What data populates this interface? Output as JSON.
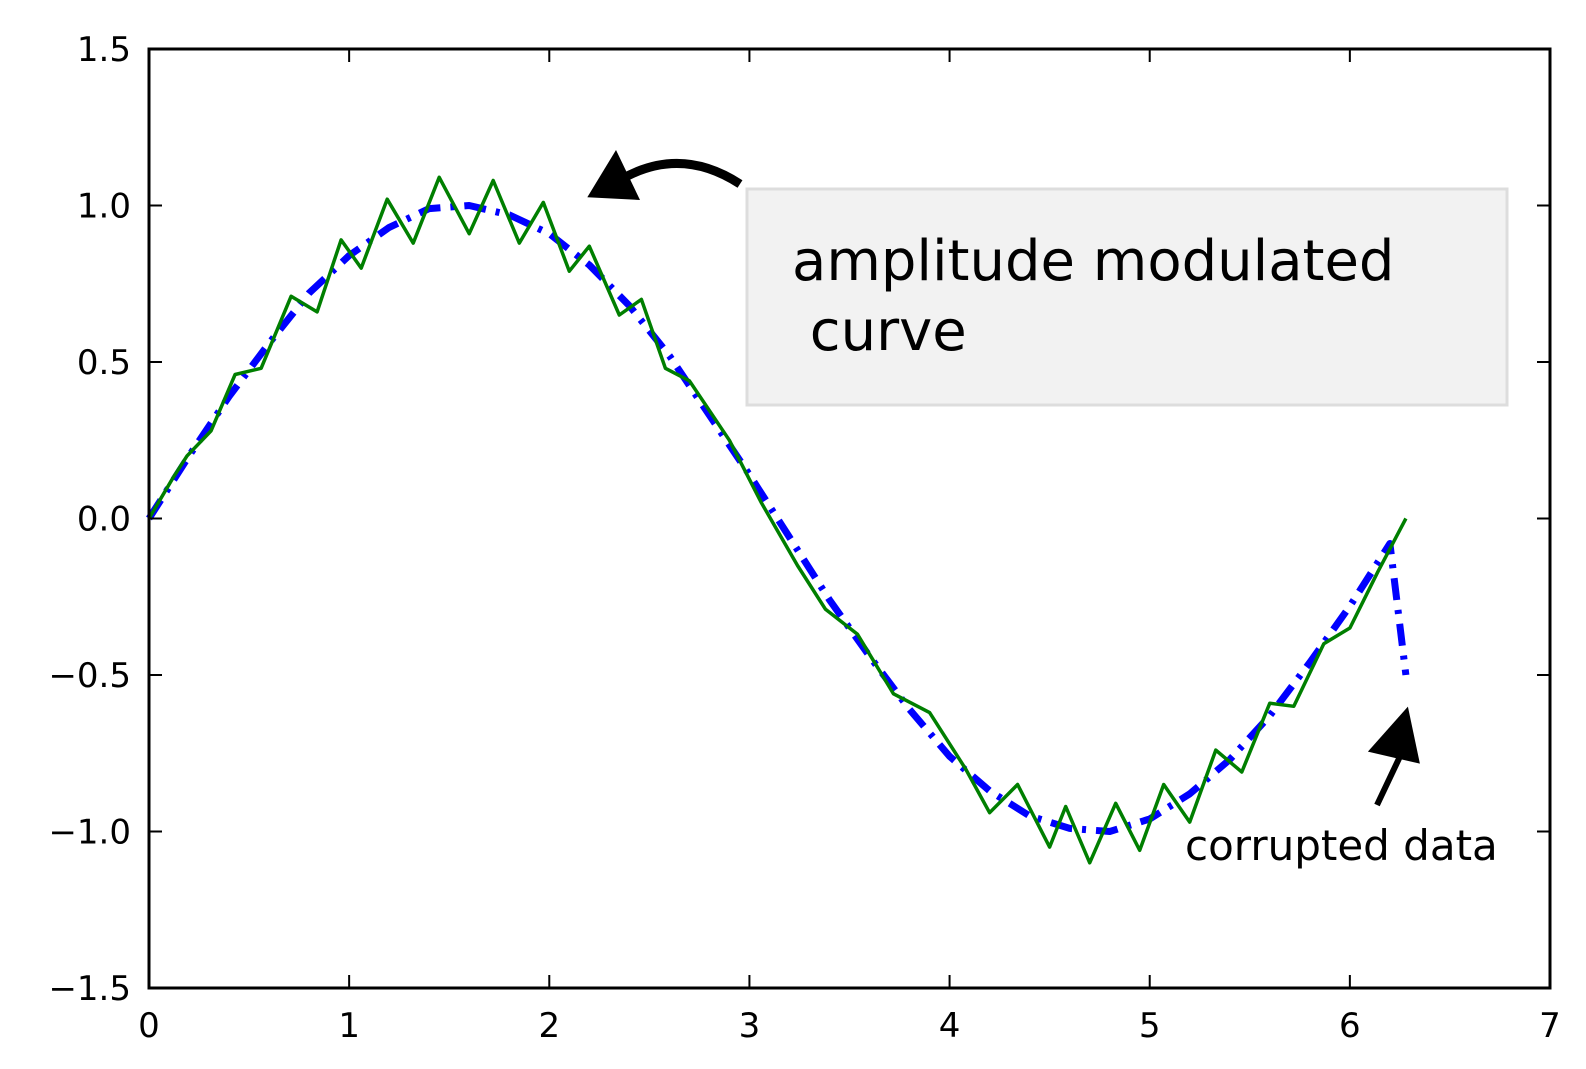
{
  "chart_data": {
    "type": "line",
    "title": "",
    "xlabel": "",
    "ylabel": "",
    "xlim": [
      0,
      7
    ],
    "ylim": [
      -1.5,
      1.5
    ],
    "xticks": [
      0,
      1,
      2,
      3,
      4,
      5,
      6,
      7
    ],
    "xtick_labels": [
      "0",
      "1",
      "2",
      "3",
      "4",
      "5",
      "6",
      "7"
    ],
    "yticks": [
      1.5,
      1.0,
      0.5,
      0.0,
      -0.5,
      -1.0,
      -1.5
    ],
    "ytick_labels": [
      "1.5",
      "1.0",
      "0.5",
      "0.0",
      "−0.5",
      "−1.0",
      "−1.5"
    ],
    "grid": false,
    "series": [
      {
        "name": "",
        "style": "dash-dot",
        "color": "#0000ff",
        "x": [
          0.0,
          0.2,
          0.4,
          0.6,
          0.8,
          1.0,
          1.2,
          1.4,
          1.6,
          1.8,
          2.0,
          2.2,
          2.4,
          2.6,
          2.8,
          3.0,
          3.2,
          3.4,
          3.6,
          3.8,
          4.0,
          4.2,
          4.4,
          4.6,
          4.8,
          5.0,
          5.2,
          5.4,
          5.6,
          5.8,
          6.0,
          6.2,
          6.28
        ],
        "y": [
          0.0,
          0.2,
          0.39,
          0.56,
          0.72,
          0.84,
          0.93,
          0.99,
          1.0,
          0.97,
          0.91,
          0.81,
          0.68,
          0.52,
          0.33,
          0.14,
          -0.06,
          -0.26,
          -0.44,
          -0.61,
          -0.76,
          -0.87,
          -0.95,
          -0.99,
          -1.0,
          -0.96,
          -0.88,
          -0.77,
          -0.63,
          -0.46,
          -0.28,
          -0.08,
          -0.5
        ]
      },
      {
        "name": "",
        "style": "solid",
        "color": "#007f00",
        "x": [
          0.0,
          0.12,
          0.19,
          0.31,
          0.43,
          0.56,
          0.71,
          0.84,
          0.96,
          1.06,
          1.19,
          1.32,
          1.45,
          1.6,
          1.72,
          1.85,
          1.97,
          2.1,
          2.2,
          2.35,
          2.46,
          2.58,
          2.7,
          2.9,
          3.06,
          3.24,
          3.38,
          3.54,
          3.72,
          3.9,
          4.08,
          4.2,
          4.34,
          4.5,
          4.58,
          4.7,
          4.83,
          4.95,
          5.07,
          5.2,
          5.33,
          5.46,
          5.6,
          5.72,
          5.87,
          6.0,
          6.14,
          6.28
        ],
        "y": [
          0.0,
          0.13,
          0.2,
          0.28,
          0.46,
          0.48,
          0.71,
          0.66,
          0.89,
          0.8,
          1.02,
          0.88,
          1.09,
          0.91,
          1.08,
          0.88,
          1.01,
          0.79,
          0.87,
          0.65,
          0.7,
          0.48,
          0.44,
          0.25,
          0.05,
          -0.15,
          -0.29,
          -0.37,
          -0.56,
          -0.62,
          -0.8,
          -0.94,
          -0.85,
          -1.05,
          -0.92,
          -1.1,
          -0.91,
          -1.06,
          -0.85,
          -0.97,
          -0.74,
          -0.81,
          -0.59,
          -0.6,
          -0.4,
          -0.35,
          -0.17,
          0.0
        ]
      }
    ],
    "annotations": [
      {
        "text_line1": "amplitude modulated",
        "text_line2": " curve",
        "point": [
          2.15,
          1.02
        ],
        "text_pos": [
          3.0,
          0.9
        ],
        "box_fill": "#f2f2f2",
        "box_edge": "#dddddd"
      },
      {
        "text": "corrupted data",
        "point": [
          6.28,
          -0.55
        ],
        "text_pos": [
          5.15,
          -1.06
        ]
      }
    ]
  }
}
